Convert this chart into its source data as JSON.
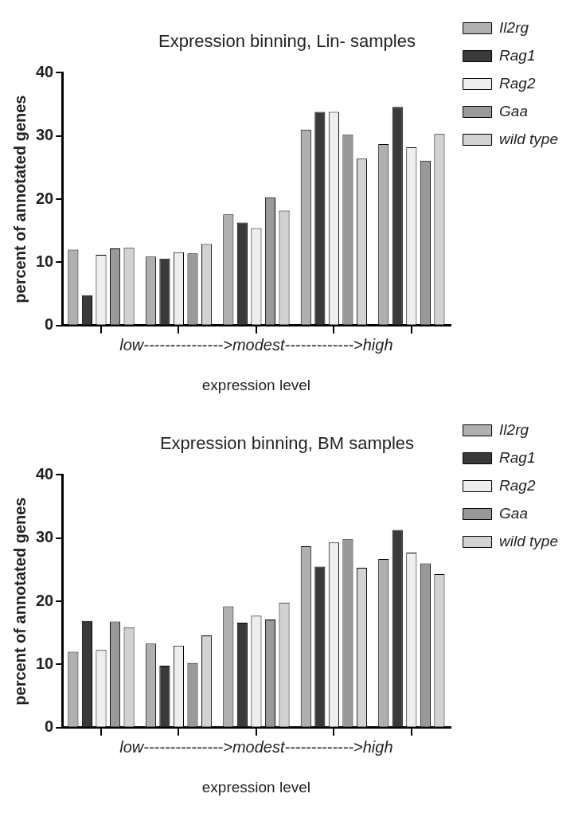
{
  "chart_data": [
    {
      "type": "bar",
      "title": "Expression binning, Lin- samples",
      "xlabel": "expression level",
      "ylabel": "percent of annotated genes",
      "annotations": [
        "low--------------->modest------------->high"
      ],
      "categories": [
        null,
        null,
        null,
        null,
        null
      ],
      "ylim": [
        0,
        40
      ],
      "yticks": [
        0,
        10,
        20,
        30,
        40
      ],
      "grid": false,
      "legend": "top right",
      "series": [
        {
          "name": "Il2rg",
          "color": "#b0b0b0",
          "values": [
            12,
            10.9,
            17.6,
            31,
            28.7
          ]
        },
        {
          "name": "Rag1",
          "color": "#3a3a3a",
          "values": [
            4.8,
            10.6,
            16.3,
            33.8,
            34.6
          ]
        },
        {
          "name": "Rag2",
          "color": "#eeeeee",
          "values": [
            11.2,
            11.6,
            15.4,
            33.8,
            28.2
          ]
        },
        {
          "name": "Gaa",
          "color": "#999999",
          "values": [
            12.2,
            11.4,
            20.3,
            30.2,
            26.1
          ]
        },
        {
          "name": "wild type",
          "color": "#d2d2d2",
          "values": [
            12.3,
            12.9,
            18.2,
            26.4,
            30.3
          ]
        }
      ]
    },
    {
      "type": "bar",
      "title": "Expression binning, BM samples",
      "xlabel": "expression level",
      "ylabel": "percent of annotated genes",
      "annotations": [
        "low--------------->modest------------->high"
      ],
      "categories": [
        null,
        null,
        null,
        null,
        null
      ],
      "ylim": [
        0,
        40
      ],
      "yticks": [
        0,
        10,
        20,
        30,
        40
      ],
      "grid": false,
      "legend": "top right",
      "series": [
        {
          "name": "Il2rg",
          "color": "#b0b0b0",
          "values": [
            12,
            13.3,
            19.2,
            28.7,
            26.7
          ]
        },
        {
          "name": "Rag1",
          "color": "#3a3a3a",
          "values": [
            16.9,
            9.8,
            16.6,
            25.5,
            31.3
          ]
        },
        {
          "name": "Rag2",
          "color": "#eeeeee",
          "values": [
            12.3,
            13,
            17.7,
            29.3,
            27.7
          ]
        },
        {
          "name": "Gaa",
          "color": "#999999",
          "values": [
            16.8,
            10.2,
            17.1,
            29.8,
            26
          ]
        },
        {
          "name": "wild type",
          "color": "#d2d2d2",
          "values": [
            15.9,
            14.6,
            19.8,
            25.3,
            24.3
          ]
        }
      ]
    }
  ]
}
